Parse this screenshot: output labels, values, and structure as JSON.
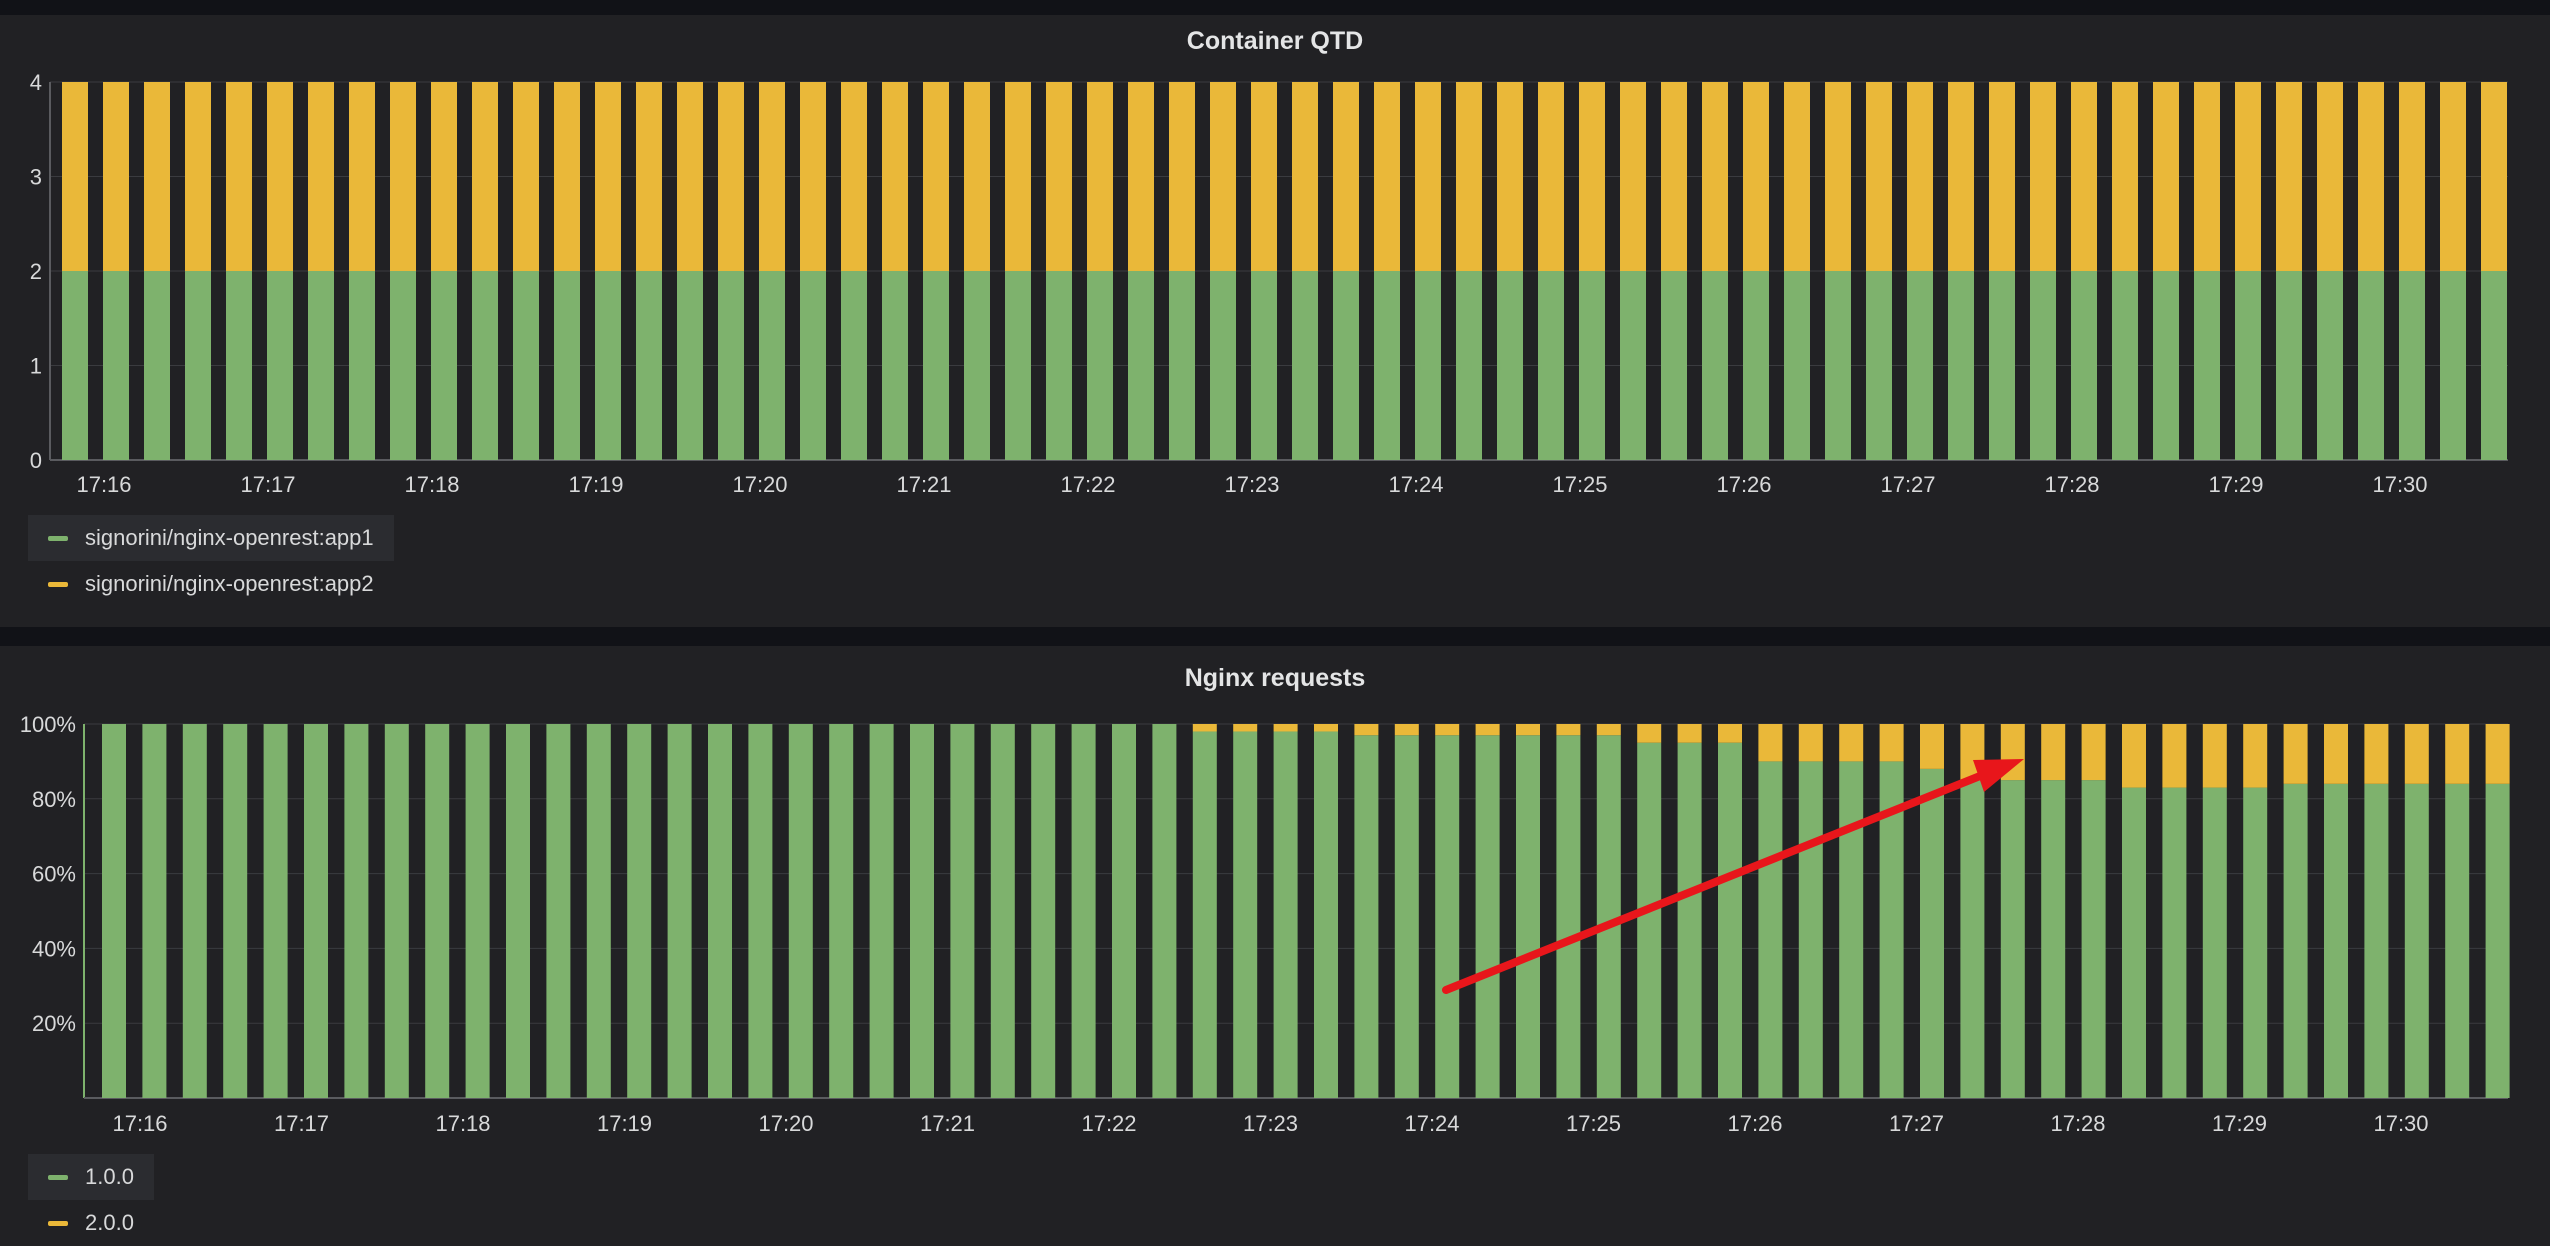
{
  "colors": {
    "green": "#7eb26d",
    "yellow": "#eab839",
    "background": "#212124",
    "grid": "#3a3b3f"
  },
  "panels": {
    "top": {
      "title": "Container QTD",
      "legend": [
        {
          "label": "signorini/nginx-openrest:app1",
          "color": "#7eb26d"
        },
        {
          "label": "signorini/nginx-openrest:app2",
          "color": "#eab839"
        }
      ]
    },
    "bottom": {
      "title": "Nginx requests",
      "legend": [
        {
          "label": "1.0.0",
          "color": "#7eb26d"
        },
        {
          "label": "2.0.0",
          "color": "#eab839"
        }
      ]
    }
  },
  "chart_data": [
    {
      "type": "bar",
      "title": "Container QTD",
      "stacked": true,
      "ylim": [
        0,
        4
      ],
      "yticks": [
        "0",
        "1",
        "2",
        "3",
        "4"
      ],
      "xticks": [
        "17:16",
        "17:17",
        "17:18",
        "17:19",
        "17:20",
        "17:21",
        "17:22",
        "17:23",
        "17:24",
        "17:25",
        "17:26",
        "17:27",
        "17:28",
        "17:29",
        "17:30"
      ],
      "series": [
        {
          "name": "signorini/nginx-openrest:app1",
          "color": "#7eb26d",
          "values": [
            2,
            2,
            2,
            2,
            2,
            2,
            2,
            2,
            2,
            2,
            2,
            2,
            2,
            2,
            2,
            2,
            2,
            2,
            2,
            2,
            2,
            2,
            2,
            2,
            2,
            2,
            2,
            2,
            2,
            2,
            2,
            2,
            2,
            2,
            2,
            2,
            2,
            2,
            2,
            2,
            2,
            2,
            2,
            2,
            2,
            2,
            2,
            2,
            2,
            2,
            2,
            2,
            2,
            2,
            2,
            2,
            2,
            2,
            2,
            2
          ]
        },
        {
          "name": "signorini/nginx-openrest:app2",
          "color": "#eab839",
          "values": [
            2,
            2,
            2,
            2,
            2,
            2,
            2,
            2,
            2,
            2,
            2,
            2,
            2,
            2,
            2,
            2,
            2,
            2,
            2,
            2,
            2,
            2,
            2,
            2,
            2,
            2,
            2,
            2,
            2,
            2,
            2,
            2,
            2,
            2,
            2,
            2,
            2,
            2,
            2,
            2,
            2,
            2,
            2,
            2,
            2,
            2,
            2,
            2,
            2,
            2,
            2,
            2,
            2,
            2,
            2,
            2,
            2,
            2,
            2,
            2
          ]
        }
      ],
      "grid": true,
      "legend_position": "bottom-left"
    },
    {
      "type": "bar",
      "title": "Nginx requests",
      "stacked": true,
      "percent": true,
      "ylim": [
        0,
        100
      ],
      "yticks": [
        "20%",
        "40%",
        "60%",
        "80%",
        "100%"
      ],
      "xticks": [
        "17:16",
        "17:17",
        "17:18",
        "17:19",
        "17:20",
        "17:21",
        "17:22",
        "17:23",
        "17:24",
        "17:25",
        "17:26",
        "17:27",
        "17:28",
        "17:29",
        "17:30"
      ],
      "series": [
        {
          "name": "1.0.0",
          "color": "#7eb26d",
          "values": [
            100,
            100,
            100,
            100,
            100,
            100,
            100,
            100,
            100,
            100,
            100,
            100,
            100,
            100,
            100,
            100,
            100,
            100,
            100,
            100,
            100,
            100,
            100,
            100,
            100,
            100,
            100,
            98,
            98,
            98,
            98,
            97,
            97,
            97,
            97,
            97,
            97,
            97,
            95,
            95,
            95,
            90,
            90,
            90,
            90,
            88,
            85,
            85,
            85,
            85,
            83,
            83,
            83,
            83,
            84,
            84,
            84,
            84,
            84,
            84
          ]
        },
        {
          "name": "2.0.0",
          "color": "#eab839",
          "values": [
            0,
            0,
            0,
            0,
            0,
            0,
            0,
            0,
            0,
            0,
            0,
            0,
            0,
            0,
            0,
            0,
            0,
            0,
            0,
            0,
            0,
            0,
            0,
            0,
            0,
            0,
            0,
            2,
            2,
            2,
            2,
            3,
            3,
            3,
            3,
            3,
            3,
            3,
            5,
            5,
            5,
            10,
            10,
            10,
            10,
            12,
            15,
            15,
            15,
            15,
            17,
            17,
            17,
            17,
            16,
            16,
            16,
            16,
            16,
            16
          ]
        }
      ],
      "grid": true,
      "legend_position": "bottom-left",
      "annotation": "red arrow pointing up-right toward the growing 2.0.0 share"
    }
  ]
}
